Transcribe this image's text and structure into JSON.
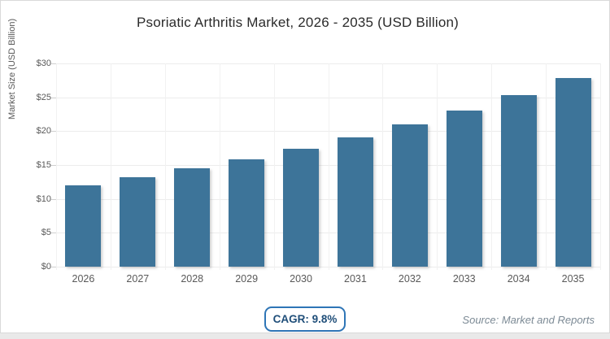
{
  "card": {
    "title": "Psoriatic Arthritis Market, 2026 - 2035 (USD Billion)"
  },
  "chart_data": {
    "type": "bar",
    "title": "Psoriatic Arthritis Market, 2026 - 2035 (USD Billion)",
    "categories": [
      "2026",
      "2027",
      "2028",
      "2029",
      "2030",
      "2031",
      "2032",
      "2033",
      "2034",
      "2035"
    ],
    "values": [
      12.0,
      13.2,
      14.5,
      15.9,
      17.4,
      19.1,
      21.0,
      23.1,
      25.3,
      27.8
    ],
    "xlabel": "",
    "ylabel": "Market Size (USD Billion)",
    "ylim": [
      0,
      30
    ],
    "ytick_step": 5,
    "ytick_labels": [
      "$0",
      "$5",
      "$10",
      "$15",
      "$20",
      "$25",
      "$30"
    ],
    "grid": true,
    "legend": "none",
    "bar_color": "#3d7499"
  },
  "footer": {
    "cagr_label": "CAGR: 9.8%",
    "source": "Source: Market and Reports"
  },
  "colors": {
    "bar": "#3d7499",
    "card_border": "#d9d9d9",
    "page_background": "#e9e9e9",
    "gridline": "#ececec",
    "axis_text": "#595959",
    "title_text": "#2b2b2b",
    "badge_border": "#2e75b6",
    "badge_text": "#1f4e79",
    "source_text": "#7c8a95"
  }
}
